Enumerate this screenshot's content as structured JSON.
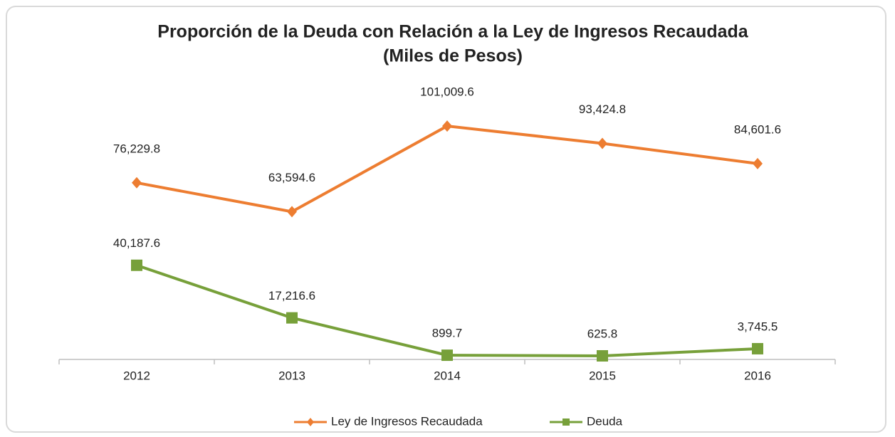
{
  "chart_data": {
    "type": "line",
    "title": "Proporción de la Deuda con Relación a la Ley de  Ingresos Recaudada",
    "subtitle": "(Miles de Pesos)",
    "categories": [
      "2012",
      "2013",
      "2014",
      "2015",
      "2016"
    ],
    "series": [
      {
        "name": "Ley de Ingresos Recaudada",
        "color": "#ed7d31",
        "marker": "diamond",
        "values": [
          76229.8,
          63594.6,
          101009.6,
          93424.8,
          84601.6
        ],
        "value_labels": [
          "76,229.8",
          "63,594.6",
          "101,009.6",
          "93,424.8",
          "84,601.6"
        ]
      },
      {
        "name": "Deuda",
        "color": "#77a03a",
        "marker": "square",
        "values": [
          40187.6,
          17216.6,
          899.7,
          625.8,
          3745.5
        ],
        "value_labels": [
          "40,187.6",
          "17,216.6",
          "899.7",
          "625.8",
          "3,745.5"
        ]
      }
    ],
    "ylim": [
      0,
      120000
    ],
    "legend": "bottom"
  }
}
